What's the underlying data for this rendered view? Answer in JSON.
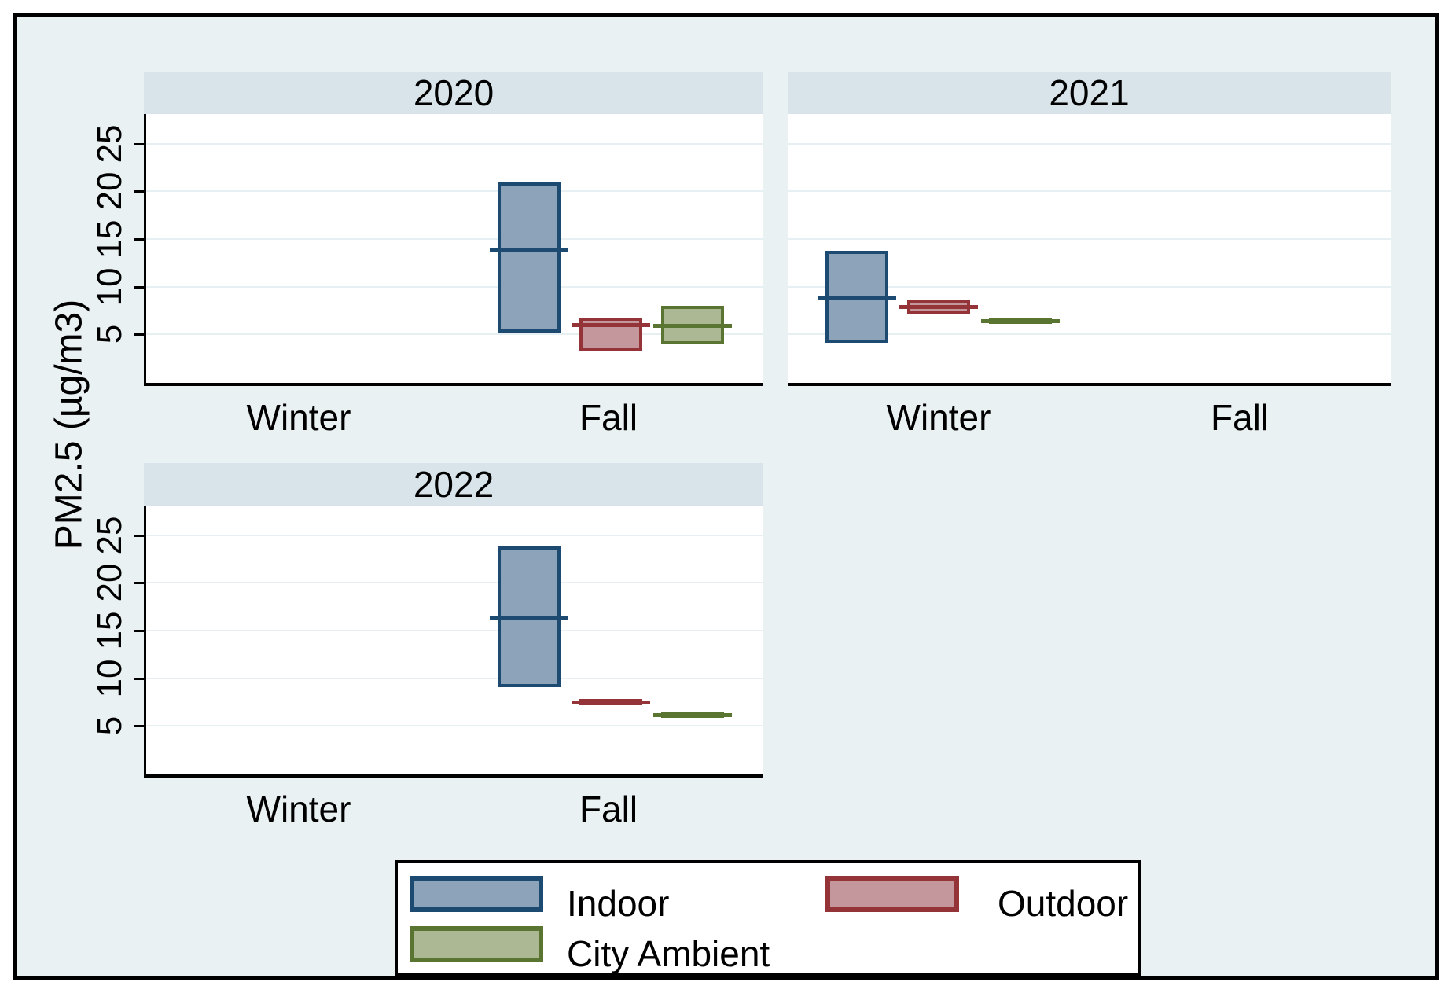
{
  "figure": {
    "background_color": "#eaf1f3",
    "strip_color": "#d9e4ea",
    "plot_background": "#ffffff",
    "gridline_color": "#e6eff2"
  },
  "chart_data": {
    "type": "box",
    "ylabel": "PM2.5 (µg/m3)",
    "yticks": [
      5,
      10,
      15,
      20,
      25
    ],
    "ylim": [
      -0.4,
      28.1
    ],
    "grid": true,
    "categories": [
      "Winter",
      "Fall"
    ],
    "series": [
      "Indoor",
      "Outdoor",
      "City Ambient"
    ],
    "legend_position": "bottom",
    "legend": [
      {
        "label": "Indoor",
        "fill": "#8ca3b9",
        "stroke": "#1d4a70"
      },
      {
        "label": "Outdoor",
        "fill": "#c4979c",
        "stroke": "#943338"
      },
      {
        "label": "City Ambient",
        "fill": "#abb893",
        "stroke": "#5a7431"
      }
    ],
    "panels": [
      {
        "label": "2020",
        "boxes": [
          {
            "category": "Fall",
            "series": "Indoor",
            "q1": 5.2,
            "median": 13.9,
            "q3": 20.9
          },
          {
            "category": "Fall",
            "series": "Outdoor",
            "q1": 3.2,
            "median": 6.0,
            "q3": 6.8
          },
          {
            "category": "Fall",
            "series": "City Ambient",
            "q1": 4.0,
            "median": 5.9,
            "q3": 8.0
          }
        ]
      },
      {
        "label": "2021",
        "boxes": [
          {
            "category": "Winter",
            "series": "Indoor",
            "q1": 4.1,
            "median": 8.9,
            "q3": 13.8
          },
          {
            "category": "Winter",
            "series": "Outdoor",
            "q1": 7.1,
            "median": 7.9,
            "q3": 8.6
          },
          {
            "category": "Winter",
            "series": "City Ambient",
            "q1": 6.2,
            "median": 6.4,
            "q3": 6.8
          }
        ]
      },
      {
        "label": "2022",
        "boxes": [
          {
            "category": "Fall",
            "series": "Indoor",
            "q1": 9.1,
            "median": 16.4,
            "q3": 23.8
          },
          {
            "category": "Fall",
            "series": "Outdoor",
            "q1": 7.2,
            "median": 7.5,
            "q3": 7.8
          },
          {
            "category": "Fall",
            "series": "City Ambient",
            "q1": 6.2,
            "median": 6.3,
            "q3": 6.5
          }
        ]
      }
    ]
  }
}
